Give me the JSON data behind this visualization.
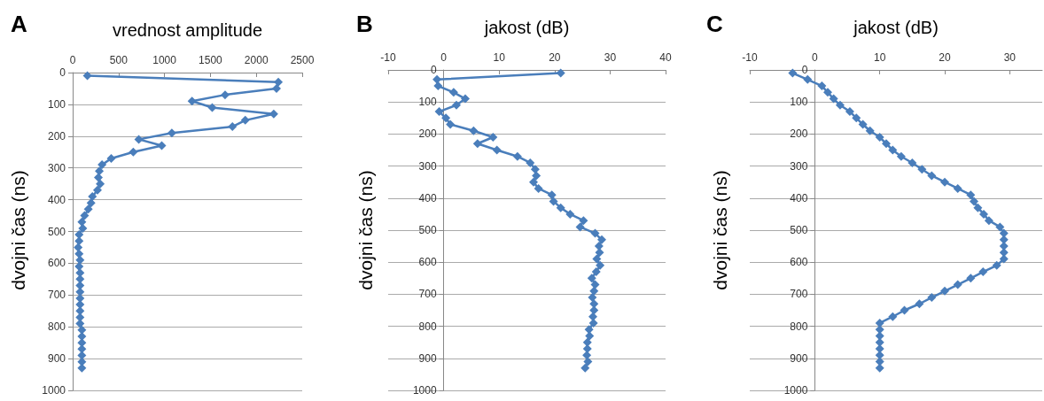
{
  "chart_data": [
    {
      "type": "line",
      "annotations": [
        "A"
      ],
      "xlabel": "vrednost amplitude",
      "ylabel": "dvojni čas (ns)",
      "xlim": [
        0,
        2500
      ],
      "xticks": [
        0,
        500,
        1000,
        1500,
        2000,
        2500
      ],
      "ylim": [
        1000,
        0
      ],
      "yticks": [
        0,
        100,
        200,
        300,
        400,
        500,
        600,
        700,
        800,
        900,
        1000
      ],
      "grid": "y",
      "marker": "diamond",
      "series": [
        {
          "color": "#4a7ebb",
          "x": [
            160,
            2240,
            2220,
            1660,
            1300,
            1520,
            2190,
            1880,
            1740,
            1080,
            720,
            970,
            660,
            420,
            320,
            290,
            280,
            300,
            270,
            215,
            200,
            170,
            130,
            100,
            110,
            70,
            70,
            60,
            70,
            80,
            70,
            80,
            80,
            80,
            80,
            80,
            80,
            80,
            80,
            80,
            100,
            100,
            100,
            100,
            100,
            100,
            100
          ],
          "values": [
            10,
            30,
            50,
            70,
            90,
            110,
            130,
            150,
            170,
            190,
            210,
            230,
            250,
            270,
            290,
            310,
            330,
            350,
            370,
            390,
            410,
            430,
            450,
            470,
            490,
            510,
            530,
            550,
            570,
            590,
            610,
            630,
            650,
            670,
            690,
            710,
            730,
            750,
            770,
            790,
            810,
            830,
            850,
            870,
            890,
            910,
            930
          ]
        }
      ]
    },
    {
      "type": "line",
      "annotations": [
        "B"
      ],
      "xlabel": "jakost (dB)",
      "ylabel": "dvojni čas (ns)",
      "xlim": [
        -10,
        40
      ],
      "xticks": [
        -10,
        0,
        10,
        20,
        30,
        40
      ],
      "ylim": [
        1000,
        0
      ],
      "yticks": [
        0,
        100,
        200,
        300,
        400,
        500,
        600,
        700,
        800,
        900,
        1000
      ],
      "grid": "y",
      "marker": "diamond",
      "series": [
        {
          "color": "#4a7ebb",
          "x": [
            21.1,
            -1.2,
            -1.0,
            1.8,
            3.9,
            2.3,
            -0.8,
            0.4,
            1.2,
            5.4,
            8.9,
            6.1,
            9.6,
            13.3,
            15.6,
            16.5,
            16.7,
            16.2,
            17.1,
            19.5,
            19.8,
            21.1,
            22.8,
            25.2,
            24.6,
            27.3,
            28.5,
            28.0,
            28.1,
            27.6,
            28.2,
            27.5,
            26.7,
            27.3,
            27.1,
            26.8,
            27.1,
            27.1,
            26.9,
            27.0,
            26.2,
            26.3,
            25.9,
            25.9,
            25.8,
            26.0,
            25.5
          ],
          "values": [
            10,
            30,
            50,
            70,
            90,
            110,
            130,
            150,
            170,
            190,
            210,
            230,
            250,
            270,
            290,
            310,
            330,
            350,
            370,
            390,
            410,
            430,
            450,
            470,
            490,
            510,
            530,
            550,
            570,
            590,
            610,
            630,
            650,
            670,
            690,
            710,
            730,
            750,
            770,
            790,
            810,
            830,
            850,
            870,
            890,
            910,
            930
          ]
        }
      ]
    },
    {
      "type": "line",
      "annotations": [
        "C"
      ],
      "xlabel": "jakost (dB)",
      "ylabel": "dvojni čas (ns)",
      "xlim": [
        -10,
        35
      ],
      "xticks": [
        -10,
        0,
        10,
        20,
        30
      ],
      "ylim": [
        1000,
        0
      ],
      "yticks": [
        0,
        100,
        200,
        300,
        400,
        500,
        600,
        700,
        800,
        900,
        1000
      ],
      "grid": "y",
      "marker": "diamond",
      "series": [
        {
          "color": "#4a7ebb",
          "x": [
            -3.4,
            -1.1,
            1.1,
            2.0,
            2.9,
            3.9,
            5.4,
            6.4,
            7.4,
            8.5,
            10.0,
            11.0,
            12.0,
            13.3,
            15.0,
            16.5,
            18.0,
            20.0,
            22.0,
            24.0,
            24.5,
            25.1,
            26.0,
            26.8,
            28.5,
            29.1,
            29.1,
            29.1,
            29.1,
            29.1,
            28.0,
            25.9,
            24.0,
            22.0,
            20.0,
            18.0,
            16.1,
            13.8,
            12.0,
            10.0,
            10.0,
            10.0,
            10.0,
            10.0,
            10.0,
            10.0,
            10.0
          ],
          "values": [
            10,
            30,
            50,
            70,
            90,
            110,
            130,
            150,
            170,
            190,
            210,
            230,
            250,
            270,
            290,
            310,
            330,
            350,
            370,
            390,
            410,
            430,
            450,
            470,
            490,
            510,
            530,
            550,
            570,
            590,
            610,
            630,
            650,
            670,
            690,
            710,
            730,
            750,
            770,
            790,
            810,
            830,
            850,
            870,
            890,
            910,
            930
          ]
        }
      ]
    }
  ]
}
